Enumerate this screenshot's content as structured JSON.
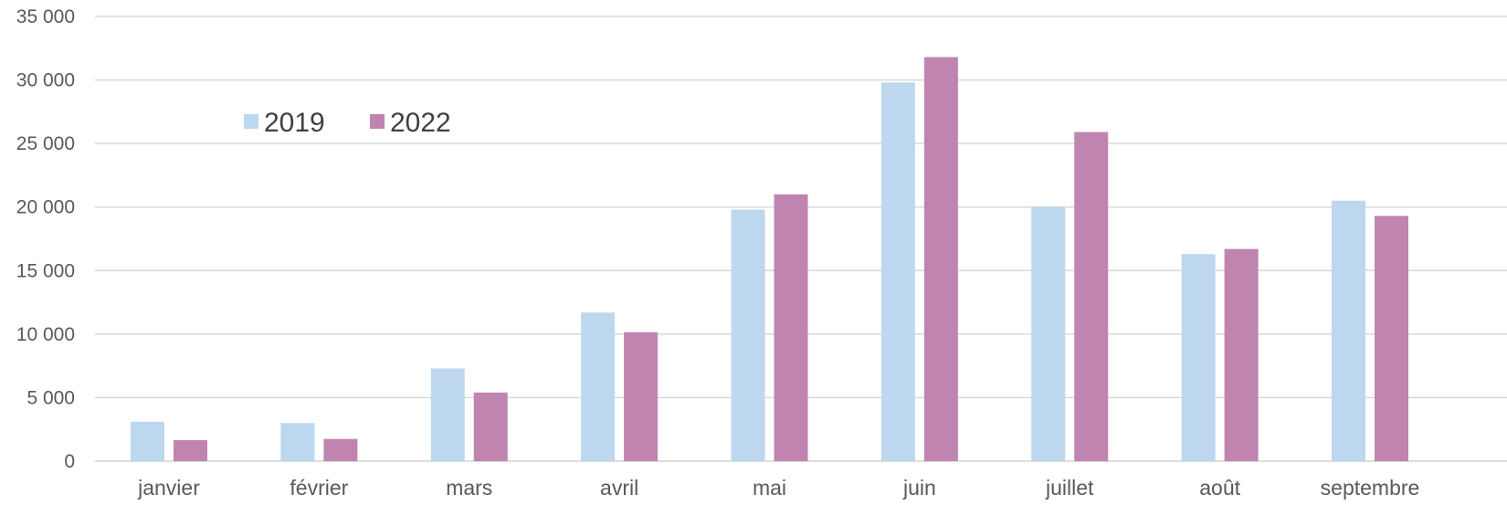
{
  "chart_data": {
    "type": "bar",
    "title": "",
    "xlabel": "",
    "ylabel": "",
    "ylim": [
      0,
      35000
    ],
    "yticks": [
      0,
      5000,
      10000,
      15000,
      20000,
      25000,
      30000,
      35000
    ],
    "ytick_labels": [
      "0",
      "5 000",
      "10 000",
      "15 000",
      "20 000",
      "25 000",
      "30 000",
      "35 000"
    ],
    "grid": true,
    "legend_position": "top-left",
    "categories": [
      "janvier",
      "février",
      "mars",
      "avril",
      "mai",
      "juin",
      "juillet",
      "août",
      "septembre"
    ],
    "series": [
      {
        "name": "2019",
        "color": "#bdd7ee",
        "values": [
          3100,
          3000,
          7300,
          11700,
          19800,
          29800,
          20000,
          16300,
          20500
        ]
      },
      {
        "name": "2022",
        "color": "#c084b0",
        "values": [
          1650,
          1750,
          5400,
          10150,
          21000,
          31800,
          25900,
          16700,
          19300
        ]
      }
    ]
  }
}
